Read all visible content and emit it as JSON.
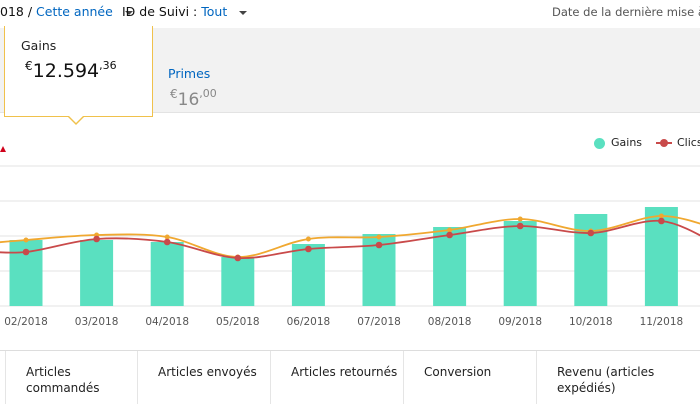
{
  "topbar": {
    "date_prefix": "018 /",
    "date_range": "Cette année",
    "tracking_label": "ID de Suivi :",
    "tracking_value": "Tout",
    "updated_text": "Date de la dernière mise à j"
  },
  "metrics": {
    "gains": {
      "label": "Gains",
      "currency": "€",
      "value": "12.594",
      "cents": ",36"
    },
    "primes": {
      "label": "Primes",
      "currency": "€",
      "value": "16",
      "cents": ",00"
    }
  },
  "chart_data": {
    "type": "bar",
    "categories": [
      "02/2018",
      "03/2018",
      "04/2018",
      "05/2018",
      "06/2018",
      "07/2018",
      "08/2018",
      "09/2018",
      "10/2018",
      "11/2018"
    ],
    "series": [
      {
        "name": "Gains",
        "type": "bar",
        "values": [
          66,
          66,
          64,
          49,
          62,
          72,
          79,
          85,
          92,
          99
        ]
      },
      {
        "name": "Clics",
        "type": "line",
        "values": [
          54,
          67,
          64,
          48,
          57,
          61,
          71,
          80,
          73,
          85
        ]
      },
      {
        "name": "",
        "type": "line",
        "values": [
          66,
          71,
          69,
          49,
          67,
          69,
          76,
          87,
          75,
          90
        ]
      }
    ],
    "ylim": [
      0,
      140
    ],
    "grid": true,
    "legend": "top-right",
    "colors": {
      "bars": "#5ae0c0",
      "clics": "#c94a4a",
      "trend": "#f0a830",
      "grid": "#e3e3e3"
    }
  },
  "legend": {
    "gains": "Gains",
    "clics": "Clics"
  },
  "bottom_tabs": [
    {
      "label": "Articles commandés"
    },
    {
      "label": "Articles envoyés"
    },
    {
      "label": "Articles retournés"
    },
    {
      "label": "Conversion"
    },
    {
      "label": "Revenu (articles expédiés)"
    }
  ]
}
